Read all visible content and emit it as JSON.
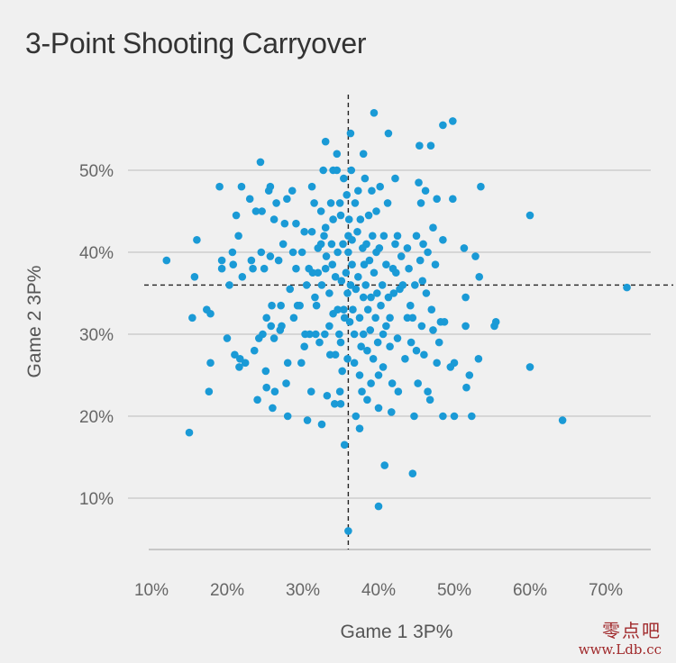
{
  "chart_data": {
    "type": "scatter",
    "title": "3-Point Shooting Carryover",
    "xlabel": "Game 1 3P%",
    "ylabel": "Game 2 3P%",
    "xlim": [
      9,
      75
    ],
    "ylim": [
      3,
      58
    ],
    "x_ticks": [
      "10%",
      "20%",
      "30%",
      "40%",
      "50%",
      "60%",
      "70%"
    ],
    "x_tick_values": [
      10,
      20,
      30,
      40,
      50,
      60,
      70
    ],
    "y_ticks": [
      "10%",
      "20%",
      "30%",
      "40%",
      "50%"
    ],
    "y_tick_values": [
      10,
      20,
      30,
      40,
      50
    ],
    "grid": "horizontal",
    "reference_lines": {
      "x": 36,
      "y": 36
    },
    "point_color": "#1a9ad6",
    "points": [
      [
        12,
        39
      ],
      [
        15,
        18
      ],
      [
        15.4,
        32
      ],
      [
        15.7,
        37
      ],
      [
        16,
        41.5
      ],
      [
        17.3,
        33
      ],
      [
        17.6,
        23
      ],
      [
        17.8,
        26.5
      ],
      [
        17.8,
        32.5
      ],
      [
        19,
        48
      ],
      [
        19.3,
        39
      ],
      [
        19.3,
        38
      ],
      [
        20,
        29.5
      ],
      [
        20.3,
        36
      ],
      [
        20.7,
        40
      ],
      [
        20.8,
        38.5
      ],
      [
        21,
        27.5
      ],
      [
        21.2,
        44.5
      ],
      [
        21.5,
        42
      ],
      [
        21.6,
        26
      ],
      [
        21.7,
        27
      ],
      [
        21.9,
        48
      ],
      [
        22,
        37
      ],
      [
        22.4,
        26.5
      ],
      [
        23,
        46.5
      ],
      [
        23.2,
        39
      ],
      [
        23.4,
        38
      ],
      [
        23.6,
        28
      ],
      [
        23.8,
        45
      ],
      [
        24,
        22
      ],
      [
        24.2,
        29.5
      ],
      [
        24.4,
        51
      ],
      [
        24.5,
        40
      ],
      [
        24.6,
        45
      ],
      [
        24.7,
        30
      ],
      [
        24.9,
        38
      ],
      [
        25.1,
        25.5
      ],
      [
        25.2,
        32
      ],
      [
        25.2,
        23.5
      ],
      [
        25.5,
        47.5
      ],
      [
        25.7,
        48
      ],
      [
        25.7,
        39.5
      ],
      [
        25.8,
        31
      ],
      [
        25.9,
        33.5
      ],
      [
        26,
        21
      ],
      [
        26.2,
        44
      ],
      [
        26.2,
        29.5
      ],
      [
        26.3,
        23
      ],
      [
        26.5,
        46
      ],
      [
        26.8,
        39
      ],
      [
        27,
        30.5
      ],
      [
        27.1,
        33.5
      ],
      [
        27.2,
        31
      ],
      [
        27.4,
        41
      ],
      [
        27.6,
        43.5
      ],
      [
        27.8,
        24
      ],
      [
        27.9,
        46.5
      ],
      [
        28,
        26.5
      ],
      [
        28,
        20
      ],
      [
        28.3,
        35.5
      ],
      [
        28.6,
        47.5
      ],
      [
        28.7,
        40
      ],
      [
        28.8,
        32
      ],
      [
        29.1,
        43.5
      ],
      [
        29.1,
        38
      ],
      [
        29.3,
        33.5
      ],
      [
        29.6,
        33.5
      ],
      [
        29.8,
        26.5
      ],
      [
        29.9,
        40
      ],
      [
        30.2,
        42.5
      ],
      [
        30.2,
        28.5
      ],
      [
        30.3,
        30
      ],
      [
        30.5,
        36
      ],
      [
        30.6,
        19.5
      ],
      [
        30.8,
        38
      ],
      [
        30.9,
        30
      ],
      [
        31.1,
        23
      ],
      [
        31.2,
        48
      ],
      [
        31.2,
        42.5
      ],
      [
        31.3,
        37.5
      ],
      [
        31.5,
        46
      ],
      [
        31.6,
        34.5
      ],
      [
        31.7,
        30
      ],
      [
        31.8,
        33.5
      ],
      [
        32,
        40.5
      ],
      [
        32,
        37.5
      ],
      [
        32.2,
        29
      ],
      [
        32.4,
        45
      ],
      [
        32.4,
        41
      ],
      [
        32.5,
        19
      ],
      [
        32.5,
        36
      ],
      [
        32.7,
        50
      ],
      [
        32.8,
        42
      ],
      [
        32.9,
        30
      ],
      [
        33,
        43
      ],
      [
        33,
        38
      ],
      [
        33,
        53.5
      ],
      [
        33.1,
        39.5
      ],
      [
        33.2,
        22.5
      ],
      [
        33.5,
        35
      ],
      [
        33.5,
        31
      ],
      [
        33.6,
        27.5
      ],
      [
        33.7,
        46
      ],
      [
        33.8,
        41
      ],
      [
        33.9,
        38.5
      ],
      [
        34,
        50
      ],
      [
        34,
        44
      ],
      [
        34,
        32.5
      ],
      [
        34.2,
        21.5
      ],
      [
        34.3,
        37
      ],
      [
        34.3,
        27.5
      ],
      [
        34.5,
        50
      ],
      [
        34.5,
        52
      ],
      [
        34.6,
        40
      ],
      [
        34.6,
        33
      ],
      [
        34.8,
        30
      ],
      [
        34.9,
        46
      ],
      [
        34.9,
        23
      ],
      [
        35,
        29
      ],
      [
        35,
        21.5
      ],
      [
        35,
        44.5
      ],
      [
        35.1,
        36.5
      ],
      [
        35.2,
        25.5
      ],
      [
        35.3,
        41
      ],
      [
        35.4,
        49
      ],
      [
        35.4,
        33
      ],
      [
        35.5,
        32
      ],
      [
        35.5,
        16.5
      ],
      [
        35.7,
        37.5
      ],
      [
        35.8,
        47
      ],
      [
        35.9,
        35
      ],
      [
        35.9,
        27
      ],
      [
        36,
        40
      ],
      [
        36,
        42
      ],
      [
        36,
        6
      ],
      [
        36.1,
        44
      ],
      [
        36.2,
        31.5
      ],
      [
        36.3,
        54.5
      ],
      [
        36.3,
        36
      ],
      [
        36.4,
        50
      ],
      [
        36.5,
        41.5
      ],
      [
        36.5,
        38.5
      ],
      [
        36.6,
        33
      ],
      [
        36.8,
        30
      ],
      [
        36.8,
        26.5
      ],
      [
        36.9,
        46
      ],
      [
        37,
        35.5
      ],
      [
        37,
        20
      ],
      [
        37.2,
        42.5
      ],
      [
        37.3,
        47.5
      ],
      [
        37.3,
        37
      ],
      [
        37.5,
        32
      ],
      [
        37.5,
        18.5
      ],
      [
        37.5,
        25
      ],
      [
        37.6,
        44
      ],
      [
        37.7,
        28.5
      ],
      [
        37.8,
        23
      ],
      [
        37.9,
        40.5
      ],
      [
        38,
        52
      ],
      [
        38,
        30
      ],
      [
        38,
        34.5
      ],
      [
        38.1,
        38.5
      ],
      [
        38.2,
        49
      ],
      [
        38.3,
        36
      ],
      [
        38.4,
        41
      ],
      [
        38.5,
        28
      ],
      [
        38.5,
        22
      ],
      [
        38.6,
        33
      ],
      [
        38.7,
        44.5
      ],
      [
        38.8,
        39
      ],
      [
        38.9,
        30.5
      ],
      [
        39,
        34.5
      ],
      [
        39,
        24
      ],
      [
        39.1,
        47.5
      ],
      [
        39.2,
        42
      ],
      [
        39.3,
        27
      ],
      [
        39.4,
        37.5
      ],
      [
        39.4,
        57
      ],
      [
        39.6,
        32
      ],
      [
        39.7,
        45
      ],
      [
        39.7,
        40
      ],
      [
        39.8,
        35
      ],
      [
        39.9,
        29
      ],
      [
        40,
        25
      ],
      [
        40,
        21
      ],
      [
        40,
        9
      ],
      [
        40.1,
        40.5
      ],
      [
        40.2,
        48
      ],
      [
        40.3,
        33.5
      ],
      [
        40.5,
        36
      ],
      [
        40.6,
        30
      ],
      [
        40.6,
        26
      ],
      [
        40.7,
        42
      ],
      [
        40.8,
        14
      ],
      [
        41,
        31
      ],
      [
        41,
        38.5
      ],
      [
        41.2,
        46
      ],
      [
        41.3,
        54.5
      ],
      [
        41.3,
        34.5
      ],
      [
        41.5,
        32
      ],
      [
        41.5,
        28.5
      ],
      [
        41.7,
        20.5
      ],
      [
        41.8,
        24
      ],
      [
        41.9,
        38
      ],
      [
        42,
        35
      ],
      [
        42.2,
        49
      ],
      [
        42.2,
        41
      ],
      [
        42.3,
        37.5
      ],
      [
        42.5,
        42
      ],
      [
        42.5,
        29.5
      ],
      [
        42.6,
        23
      ],
      [
        42.8,
        35.5
      ],
      [
        43,
        39.5
      ],
      [
        43.2,
        36
      ],
      [
        43.5,
        27
      ],
      [
        43.8,
        32
      ],
      [
        43.8,
        40.5
      ],
      [
        44,
        38
      ],
      [
        44.2,
        33.5
      ],
      [
        44.3,
        29
      ],
      [
        44.5,
        32
      ],
      [
        44.5,
        13
      ],
      [
        44.7,
        20
      ],
      [
        44.8,
        36
      ],
      [
        45,
        42
      ],
      [
        45,
        28
      ],
      [
        45.2,
        24
      ],
      [
        45.3,
        48.5
      ],
      [
        45.4,
        53
      ],
      [
        45.5,
        39
      ],
      [
        45.6,
        46
      ],
      [
        45.7,
        31
      ],
      [
        45.8,
        36.5
      ],
      [
        45.9,
        41
      ],
      [
        46,
        27.5
      ],
      [
        46.2,
        47.5
      ],
      [
        46.3,
        35
      ],
      [
        46.5,
        23
      ],
      [
        46.5,
        40
      ],
      [
        46.8,
        22
      ],
      [
        46.9,
        53
      ],
      [
        47,
        33
      ],
      [
        47.2,
        30.5
      ],
      [
        47.2,
        43
      ],
      [
        47.5,
        38.5
      ],
      [
        47.7,
        26.5
      ],
      [
        47.7,
        46.5
      ],
      [
        48,
        29
      ],
      [
        48.2,
        31.5
      ],
      [
        48.5,
        55.5
      ],
      [
        48.5,
        41.5
      ],
      [
        48.5,
        20
      ],
      [
        48.7,
        31.5
      ],
      [
        49.5,
        26
      ],
      [
        49.8,
        56
      ],
      [
        49.8,
        46.5
      ],
      [
        50,
        26.5
      ],
      [
        50,
        20
      ],
      [
        51.3,
        40.5
      ],
      [
        51.5,
        31
      ],
      [
        51.5,
        34.5
      ],
      [
        51.6,
        23.5
      ],
      [
        52,
        25
      ],
      [
        52.3,
        20
      ],
      [
        52.8,
        39.5
      ],
      [
        53.2,
        27
      ],
      [
        53.3,
        37
      ],
      [
        53.5,
        48
      ],
      [
        55.3,
        31
      ],
      [
        55.5,
        31.5
      ],
      [
        60,
        44.5
      ],
      [
        60,
        26
      ],
      [
        64.3,
        19.5
      ],
      [
        72.8,
        35.7
      ]
    ]
  },
  "watermark": {
    "line1": "零点吧",
    "line2": "www.Ldb.cc"
  }
}
